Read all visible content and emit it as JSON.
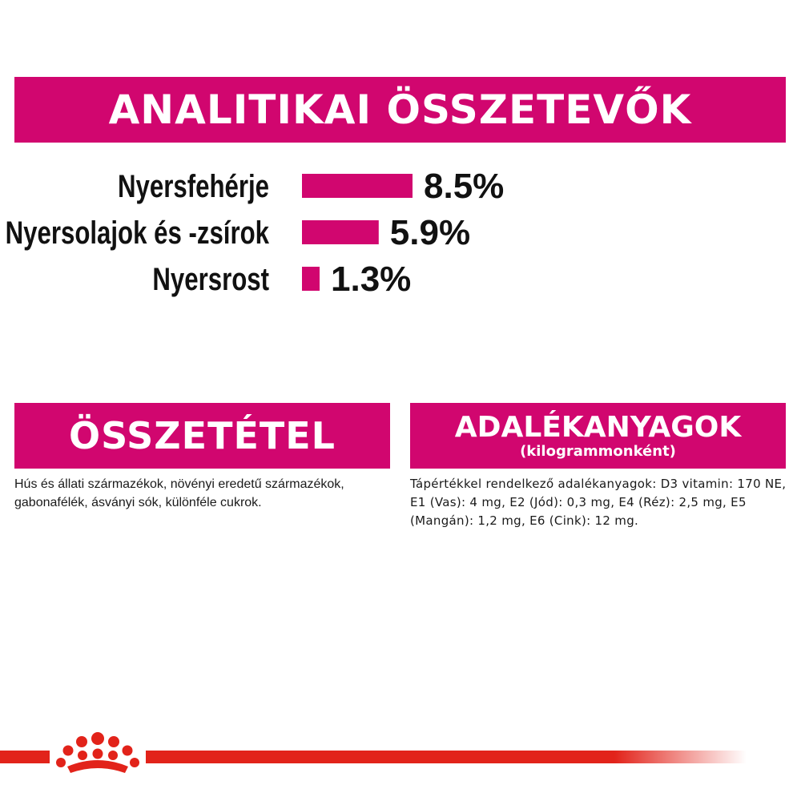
{
  "header": {
    "title": "ANALITIKAI ÖSSZETEVŐK"
  },
  "chart_data": {
    "type": "bar",
    "orientation": "horizontal",
    "categories": [
      "Nyersfehérje",
      "Nyersolajok és -zsírok",
      "Nyersrost"
    ],
    "values": [
      8.5,
      5.9,
      1.3
    ],
    "value_labels": [
      "8.5%",
      "5.9%",
      "1.3%"
    ],
    "unit": "%",
    "xlim": [
      0,
      8.5
    ],
    "grid": false,
    "bar_color": "#d1066f"
  },
  "composition": {
    "title": "ÖSSZETÉTEL",
    "text": "Hús és állati származékok, növényi eredetű származékok, gabonafélék, ásványi sók, különféle cukrok."
  },
  "additives": {
    "title": "ADALÉKANYAGOK",
    "subtitle": "(kilogrammonként)",
    "text": "Tápértékkel rendelkező adalékanyagok: D3 vitamin: 170 NE, E1 (Vas): 4 mg, E2 (Jód): 0,3 mg, E4 (Réz): 2,5 mg, E5 (Mangán): 1,2 mg, E6 (Cink): 12 mg."
  },
  "footer": {
    "logo_icon": "crown-icon",
    "stripe_color": "#e2231a"
  },
  "colors": {
    "accent": "#d1066f",
    "text": "#111111"
  }
}
